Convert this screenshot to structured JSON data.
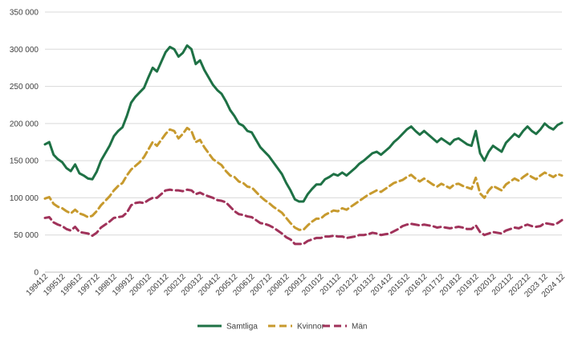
{
  "chart_data": {
    "type": "line",
    "title": "",
    "xlabel": "",
    "ylabel": "",
    "ylim": [
      0,
      350000
    ],
    "yticks": [
      0,
      50000,
      100000,
      150000,
      200000,
      250000,
      300000,
      350000
    ],
    "ytick_labels": [
      "0",
      "50 000",
      "100 000",
      "150 000",
      "200 000",
      "250 000",
      "300 000",
      "350 000"
    ],
    "xtick_labels": [
      "199412",
      "199512",
      "199612",
      "199712",
      "199812",
      "199912",
      "200012",
      "200112",
      "200212",
      "200312",
      "200412",
      "200512",
      "200612",
      "200712",
      "200812",
      "200912",
      "201012",
      "201112",
      "201212",
      "201312",
      "201412",
      "201512",
      "201612",
      "201712",
      "201812",
      "201912",
      "202012",
      "202112",
      "202212",
      "2023 12",
      "2024 12"
    ],
    "x": [
      "1994-12",
      "1995-03",
      "1995-06",
      "1995-09",
      "1995-12",
      "1996-03",
      "1996-06",
      "1996-09",
      "1996-12",
      "1997-03",
      "1997-06",
      "1997-09",
      "1997-12",
      "1998-03",
      "1998-06",
      "1998-09",
      "1998-12",
      "1999-03",
      "1999-06",
      "1999-09",
      "1999-12",
      "2000-03",
      "2000-06",
      "2000-09",
      "2000-12",
      "2001-03",
      "2001-06",
      "2001-09",
      "2001-12",
      "2002-03",
      "2002-06",
      "2002-09",
      "2002-12",
      "2003-03",
      "2003-06",
      "2003-09",
      "2003-12",
      "2004-03",
      "2004-06",
      "2004-09",
      "2004-12",
      "2005-03",
      "2005-06",
      "2005-09",
      "2005-12",
      "2006-03",
      "2006-06",
      "2006-09",
      "2006-12",
      "2007-03",
      "2007-06",
      "2007-09",
      "2007-12",
      "2008-03",
      "2008-06",
      "2008-09",
      "2008-12",
      "2009-03",
      "2009-06",
      "2009-09",
      "2009-12",
      "2010-03",
      "2010-06",
      "2010-09",
      "2010-12",
      "2011-03",
      "2011-06",
      "2011-09",
      "2011-12",
      "2012-03",
      "2012-06",
      "2012-09",
      "2012-12",
      "2013-03",
      "2013-06",
      "2013-09",
      "2013-12",
      "2014-03",
      "2014-06",
      "2014-09",
      "2014-12",
      "2015-03",
      "2015-06",
      "2015-09",
      "2015-12",
      "2016-03",
      "2016-06",
      "2016-09",
      "2016-12",
      "2017-03",
      "2017-06",
      "2017-09",
      "2017-12",
      "2018-03",
      "2018-06",
      "2018-09",
      "2018-12",
      "2019-03",
      "2019-06",
      "2019-09",
      "2019-12",
      "2020-03",
      "2020-06",
      "2020-09",
      "2020-12",
      "2021-03",
      "2021-06",
      "2021-09",
      "2021-12",
      "2022-03",
      "2022-06",
      "2022-09",
      "2022-12",
      "2023-03",
      "2023-06",
      "2023-09",
      "2023-12",
      "2024-03",
      "2024-06",
      "2024-09",
      "2024-12"
    ],
    "series": [
      {
        "name": "Samtliga",
        "color": "#1e7145",
        "dash": "solid",
        "values": [
          172000,
          175000,
          158000,
          152000,
          148000,
          140000,
          136000,
          145000,
          133000,
          130000,
          126000,
          125000,
          135000,
          150000,
          160000,
          170000,
          183000,
          190000,
          195000,
          210000,
          228000,
          236000,
          242000,
          248000,
          262000,
          275000,
          270000,
          283000,
          296000,
          303000,
          300000,
          290000,
          295000,
          305000,
          300000,
          280000,
          285000,
          272000,
          262000,
          252000,
          245000,
          240000,
          230000,
          218000,
          210000,
          200000,
          197000,
          190000,
          188000,
          178000,
          168000,
          162000,
          156000,
          148000,
          140000,
          132000,
          120000,
          110000,
          98000,
          95000,
          95000,
          105000,
          112000,
          118000,
          118000,
          125000,
          128000,
          132000,
          130000,
          134000,
          130000,
          135000,
          140000,
          146000,
          150000,
          155000,
          160000,
          162000,
          158000,
          163000,
          168000,
          175000,
          180000,
          186000,
          192000,
          196000,
          190000,
          185000,
          190000,
          185000,
          180000,
          175000,
          180000,
          176000,
          172000,
          178000,
          180000,
          176000,
          172000,
          170000,
          190000,
          160000,
          150000,
          162000,
          170000,
          166000,
          162000,
          174000,
          180000,
          186000,
          182000,
          190000,
          196000,
          190000,
          186000,
          192000,
          200000,
          195000,
          192000,
          198000,
          201000
        ]
      },
      {
        "name": "Kvinnor",
        "color": "#c79a2e",
        "dash": "dashed",
        "values": [
          99000,
          101000,
          92000,
          88000,
          86000,
          82000,
          79000,
          84000,
          79000,
          77000,
          74000,
          76000,
          82000,
          90000,
          96000,
          102000,
          110000,
          116000,
          120000,
          130000,
          138000,
          143000,
          148000,
          155000,
          165000,
          175000,
          170000,
          178000,
          186000,
          192000,
          190000,
          180000,
          186000,
          194000,
          190000,
          175000,
          178000,
          168000,
          160000,
          152000,
          148000,
          144000,
          136000,
          130000,
          128000,
          122000,
          120000,
          115000,
          114000,
          108000,
          102000,
          97000,
          93000,
          88000,
          84000,
          80000,
          73000,
          66000,
          60000,
          57000,
          57000,
          63000,
          68000,
          72000,
          72000,
          77000,
          80000,
          83000,
          82000,
          86000,
          84000,
          88000,
          92000,
          96000,
          100000,
          104000,
          107000,
          110000,
          108000,
          112000,
          116000,
          120000,
          122000,
          124000,
          128000,
          131000,
          126000,
          122000,
          126000,
          122000,
          118000,
          115000,
          119000,
          116000,
          113000,
          118000,
          119000,
          116000,
          114000,
          112000,
          127000,
          106000,
          100000,
          110000,
          116000,
          113000,
          110000,
          118000,
          122000,
          126000,
          123000,
          128000,
          132000,
          128000,
          125000,
          130000,
          134000,
          131000,
          128000,
          132000,
          130000
        ]
      },
      {
        "name": "Män",
        "color": "#a0325a",
        "dash": "dashed",
        "values": [
          73000,
          74000,
          67000,
          64000,
          62000,
          58000,
          56000,
          61000,
          54000,
          53000,
          52000,
          49000,
          53000,
          60000,
          64000,
          68000,
          73000,
          74000,
          75000,
          80000,
          90000,
          93000,
          94000,
          93000,
          97000,
          100000,
          100000,
          105000,
          110000,
          111000,
          110000,
          110000,
          109000,
          111000,
          110000,
          105000,
          107000,
          104000,
          102000,
          100000,
          97000,
          96000,
          94000,
          88000,
          82000,
          78000,
          77000,
          75000,
          74000,
          70000,
          66000,
          65000,
          63000,
          60000,
          56000,
          52000,
          47000,
          44000,
          38000,
          38000,
          38000,
          42000,
          44000,
          46000,
          46000,
          48000,
          48000,
          49000,
          48000,
          48000,
          46000,
          47000,
          48000,
          50000,
          50000,
          51000,
          53000,
          52000,
          50000,
          51000,
          52000,
          55000,
          58000,
          62000,
          64000,
          65000,
          64000,
          63000,
          64000,
          63000,
          62000,
          60000,
          61000,
          60000,
          59000,
          60000,
          61000,
          60000,
          58000,
          58000,
          63000,
          54000,
          50000,
          52000,
          54000,
          53000,
          52000,
          56000,
          58000,
          60000,
          59000,
          62000,
          64000,
          62000,
          61000,
          62000,
          66000,
          65000,
          64000,
          66000,
          70000
        ]
      }
    ],
    "grid": true,
    "legend": "bottom"
  }
}
